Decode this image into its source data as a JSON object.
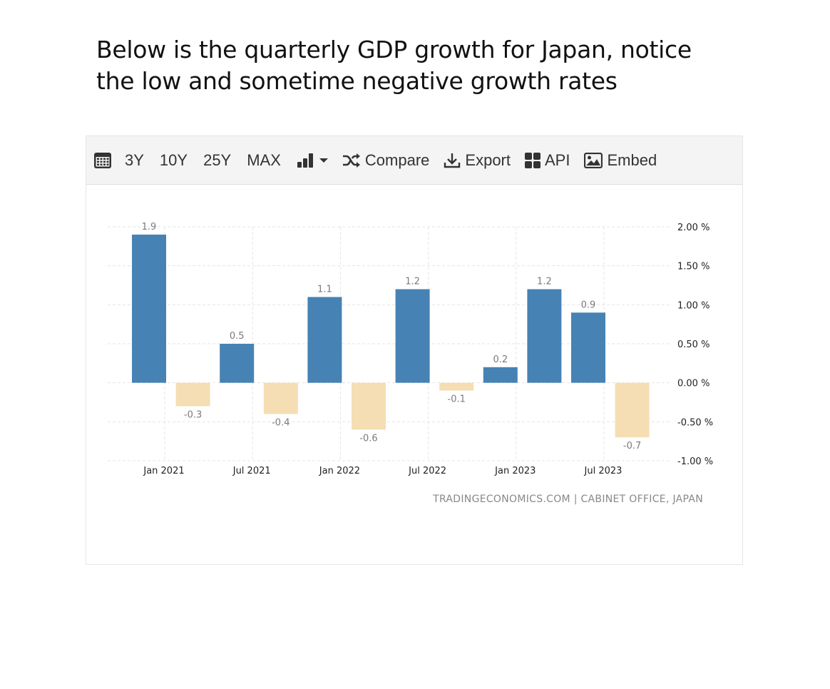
{
  "caption": {
    "line1": "Below is the quarterly GDP growth for Japan, notice",
    "line2": "the low and sometime negative growth rates"
  },
  "toolbar": {
    "items": [
      {
        "name": "calendar",
        "label": "",
        "icon": "calendar-icon"
      },
      {
        "name": "3y",
        "label": "3Y"
      },
      {
        "name": "10y",
        "label": "10Y"
      },
      {
        "name": "25y",
        "label": "25Y"
      },
      {
        "name": "max",
        "label": "MAX"
      },
      {
        "name": "chart-type",
        "label": "",
        "icon": "bar-chart-icon"
      },
      {
        "name": "compare",
        "label": "Compare",
        "icon": "shuffle-icon"
      },
      {
        "name": "export",
        "label": "Export",
        "icon": "download-icon"
      },
      {
        "name": "api",
        "label": "API",
        "icon": "grid-icon"
      },
      {
        "name": "embed",
        "label": "Embed",
        "icon": "image-icon"
      }
    ]
  },
  "chart_data": {
    "type": "bar",
    "categories": [
      "Jan 2021",
      "Apr 2021",
      "Jul 2021",
      "Oct 2021",
      "Jan 2022",
      "Apr 2022",
      "Jul 2022",
      "Oct 2022",
      "Jan 2023",
      "Apr 2023",
      "Jul 2023",
      "Oct 2023"
    ],
    "values": [
      1.9,
      -0.3,
      0.5,
      -0.4,
      1.1,
      -0.6,
      1.2,
      -0.1,
      0.2,
      1.2,
      0.9,
      -0.7
    ],
    "data_labels": [
      "1.9",
      "-0.3",
      "0.5",
      "-0.4",
      "1.1",
      "-0.6",
      "1.2",
      "-0.1",
      "0.2",
      "1.2",
      "0.9",
      "-0.7"
    ],
    "x_tick_labels": [
      {
        "category": "Jan 2021",
        "label": "Jan 2021"
      },
      {
        "category": "Jul 2021",
        "label": "Jul 2021"
      },
      {
        "category": "Jan 2022",
        "label": "Jan 2022"
      },
      {
        "category": "Jul 2022",
        "label": "Jul 2022"
      },
      {
        "category": "Jan 2023",
        "label": "Jan 2023"
      },
      {
        "category": "Jul 2023",
        "label": "Jul 2023"
      }
    ],
    "y_ticks": [
      {
        "value": 2.0,
        "label": "2.00 %"
      },
      {
        "value": 1.5,
        "label": "1.50 %"
      },
      {
        "value": 1.0,
        "label": "1.00 %"
      },
      {
        "value": 0.5,
        "label": "0.50 %"
      },
      {
        "value": 0.0,
        "label": "0.00 %"
      },
      {
        "value": -0.5,
        "label": "-0.50 %"
      },
      {
        "value": -1.0,
        "label": "-1.00 %"
      }
    ],
    "ylim": [
      -1.0,
      2.0
    ],
    "y_axis_side": "right",
    "grid": true,
    "colors": {
      "positive": "#4682b4",
      "negative": "#f5deb3",
      "label": "#7a7a7a",
      "grid": "#e4e4e4",
      "tick": "#222222"
    },
    "source": "TRADINGECONOMICS.COM | CABINET OFFICE, JAPAN"
  }
}
